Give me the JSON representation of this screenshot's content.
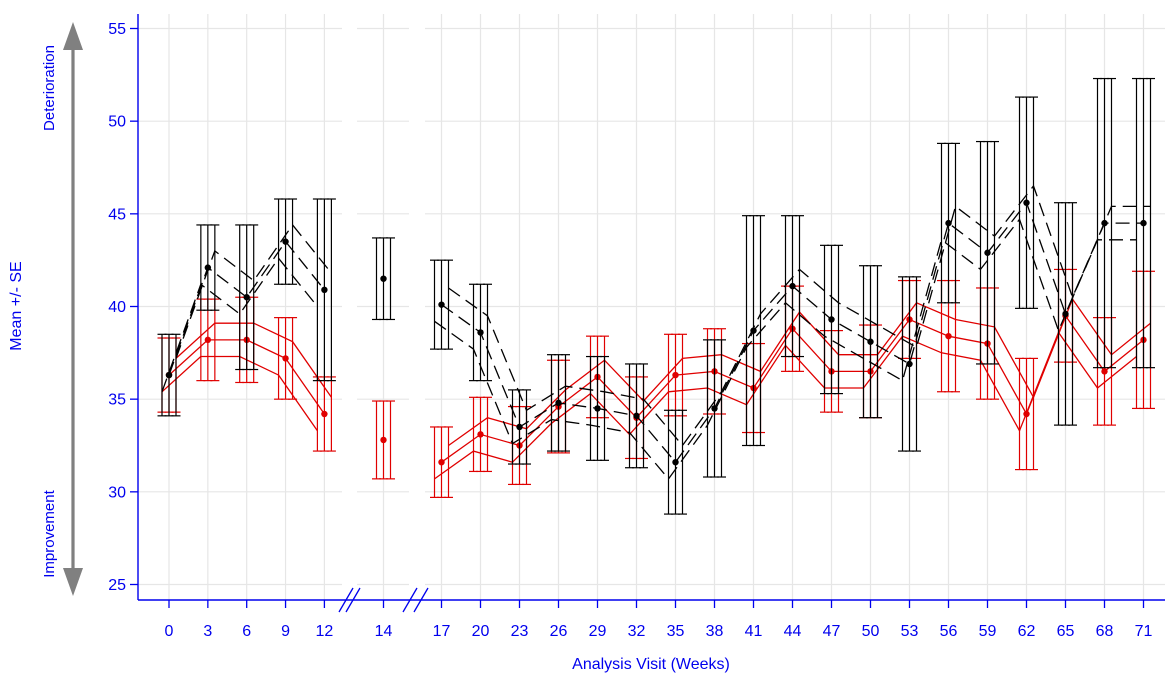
{
  "chart_data": {
    "type": "line",
    "xlabel": "Analysis Visit (Weeks)",
    "ylabel": "Mean +/- SE",
    "ylim": [
      25,
      55
    ],
    "yticks": [
      25,
      30,
      35,
      40,
      45,
      50,
      55
    ],
    "xticks": [
      0,
      3,
      6,
      9,
      12,
      14,
      17,
      20,
      23,
      26,
      29,
      32,
      35,
      38,
      41,
      44,
      47,
      50,
      53,
      56,
      59,
      62,
      65,
      68,
      71
    ],
    "axis_breaks": [
      "between 12 and 14",
      "between 14 and 17"
    ],
    "direction_labels": {
      "top": "Deterioration",
      "bottom": "Improvement"
    },
    "grid": true,
    "colors": {
      "axis": "#0000ee",
      "treatment": "#e00000",
      "comparison": "#000000",
      "grid": "#e6e6e6",
      "arrow": "#808080"
    },
    "series": [
      {
        "style": "solid",
        "color": "#e00000",
        "points": [
          {
            "x": 0,
            "y": 36.3,
            "se": 2.0
          },
          {
            "x": 3,
            "y": 38.2,
            "se": 2.2
          },
          {
            "x": 6,
            "y": 38.2,
            "se": 2.3
          },
          {
            "x": 9,
            "y": 37.2,
            "se": 2.2
          },
          {
            "x": 12,
            "y": 34.2,
            "se": 2.0
          },
          {
            "x": 14,
            "y": 32.8,
            "se": 2.1
          },
          {
            "x": 17,
            "y": 31.6,
            "se": 1.9
          },
          {
            "x": 20,
            "y": 33.1,
            "se": 2.0
          },
          {
            "x": 23,
            "y": 32.5,
            "se": 2.1
          },
          {
            "x": 26,
            "y": 34.6,
            "se": 2.5
          },
          {
            "x": 29,
            "y": 36.2,
            "se": 2.2
          },
          {
            "x": 32,
            "y": 34.0,
            "se": 2.2
          },
          {
            "x": 35,
            "y": 36.3,
            "se": 2.2
          },
          {
            "x": 38,
            "y": 36.5,
            "se": 2.3
          },
          {
            "x": 41,
            "y": 35.6,
            "se": 2.4
          },
          {
            "x": 44,
            "y": 38.8,
            "se": 2.3
          },
          {
            "x": 47,
            "y": 36.5,
            "se": 2.2
          },
          {
            "x": 50,
            "y": 36.5,
            "se": 2.5
          },
          {
            "x": 53,
            "y": 39.3,
            "se": 2.1
          },
          {
            "x": 56,
            "y": 38.4,
            "se": 3.0
          },
          {
            "x": 59,
            "y": 38.0,
            "se": 3.0
          },
          {
            "x": 62,
            "y": 34.2,
            "se": 3.0
          },
          {
            "x": 65,
            "y": 39.5,
            "se": 2.5
          },
          {
            "x": 68,
            "y": 36.5,
            "se": 2.9
          },
          {
            "x": 71,
            "y": 38.2,
            "se": 3.7
          }
        ]
      },
      {
        "style": "dashed",
        "color": "#000000",
        "points": [
          {
            "x": 0,
            "y": 36.3,
            "se": 2.2
          },
          {
            "x": 3,
            "y": 42.1,
            "se": 2.3
          },
          {
            "x": 6,
            "y": 40.5,
            "se": 3.9
          },
          {
            "x": 9,
            "y": 43.5,
            "se": 2.3
          },
          {
            "x": 12,
            "y": 40.9,
            "se": 4.9
          },
          {
            "x": 14,
            "y": 41.5,
            "se": 2.2
          },
          {
            "x": 17,
            "y": 40.1,
            "se": 2.4
          },
          {
            "x": 20,
            "y": 38.6,
            "se": 2.6
          },
          {
            "x": 23,
            "y": 33.5,
            "se": 2.0
          },
          {
            "x": 26,
            "y": 34.8,
            "se": 2.6
          },
          {
            "x": 29,
            "y": 34.5,
            "se": 2.8
          },
          {
            "x": 32,
            "y": 34.1,
            "se": 2.8
          },
          {
            "x": 35,
            "y": 31.6,
            "se": 2.8
          },
          {
            "x": 38,
            "y": 34.5,
            "se": 3.7
          },
          {
            "x": 41,
            "y": 38.7,
            "se": 6.2
          },
          {
            "x": 44,
            "y": 41.1,
            "se": 3.8
          },
          {
            "x": 47,
            "y": 39.3,
            "se": 4.0
          },
          {
            "x": 50,
            "y": 38.1,
            "se": 4.1
          },
          {
            "x": 53,
            "y": 36.9,
            "se": 4.7
          },
          {
            "x": 56,
            "y": 44.5,
            "se": 4.3
          },
          {
            "x": 59,
            "y": 42.9,
            "se": 6.0
          },
          {
            "x": 62,
            "y": 45.6,
            "se": 5.7
          },
          {
            "x": 65,
            "y": 39.6,
            "se": 6.0
          },
          {
            "x": 68,
            "y": 44.5,
            "se": 7.8
          },
          {
            "x": 71,
            "y": 44.5,
            "se": 7.8
          }
        ]
      }
    ]
  }
}
